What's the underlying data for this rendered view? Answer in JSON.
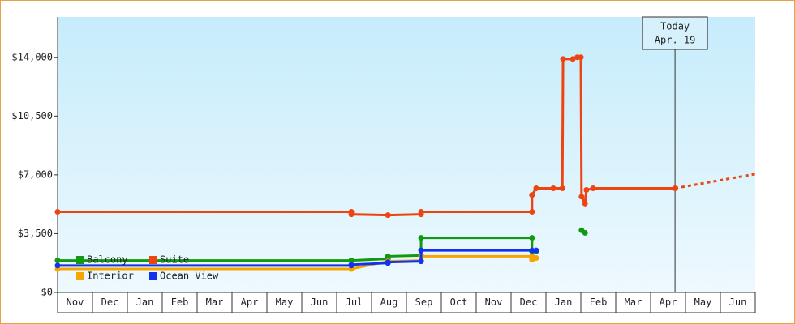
{
  "chart_data": {
    "type": "line",
    "xlim": [
      0,
      20
    ],
    "xticks": [
      {
        "value": 0.5,
        "label": "Nov"
      },
      {
        "value": 1.5,
        "label": "Dec"
      },
      {
        "value": 2.5,
        "label": "Jan"
      },
      {
        "value": 3.5,
        "label": "Feb"
      },
      {
        "value": 4.5,
        "label": "Mar"
      },
      {
        "value": 5.5,
        "label": "Apr"
      },
      {
        "value": 6.5,
        "label": "May"
      },
      {
        "value": 7.5,
        "label": "Jun"
      },
      {
        "value": 8.5,
        "label": "Jul"
      },
      {
        "value": 9.5,
        "label": "Aug"
      },
      {
        "value": 10.5,
        "label": "Sep"
      },
      {
        "value": 11.5,
        "label": "Oct"
      },
      {
        "value": 12.5,
        "label": "Nov"
      },
      {
        "value": 13.5,
        "label": "Dec"
      },
      {
        "value": 14.5,
        "label": "Jan"
      },
      {
        "value": 15.5,
        "label": "Feb"
      },
      {
        "value": 16.5,
        "label": "Mar"
      },
      {
        "value": 17.5,
        "label": "Apr"
      },
      {
        "value": 18.5,
        "label": "May"
      },
      {
        "value": 19.5,
        "label": "Jun"
      }
    ],
    "ylim": [
      0,
      16400
    ],
    "yticks": [
      {
        "value": 0,
        "label": "$0"
      },
      {
        "value": 3500,
        "label": "$3,500"
      },
      {
        "value": 7000,
        "label": "$7,000"
      },
      {
        "value": 10500,
        "label": "$10,500"
      },
      {
        "value": 14000,
        "label": "$14,000"
      }
    ],
    "today": {
      "x": 17.7,
      "label": "Today",
      "date": "Apr. 19"
    },
    "series": [
      {
        "name": "Balcony",
        "color": "#119911",
        "x": [
          0,
          8.42,
          9.47,
          9.47,
          10.42,
          10.42,
          13.6,
          13.6,
          13.72,
          null,
          15.02,
          15.12
        ],
        "values": [
          1900,
          1900,
          2000,
          2150,
          2200,
          3250,
          3250,
          2450,
          2450,
          null,
          3700,
          3550
        ]
      },
      {
        "name": "Suite",
        "color": "#ee4411",
        "x": [
          0,
          8.42,
          8.42,
          9.47,
          10.42,
          10.42,
          13.6,
          13.6,
          13.72,
          14.21,
          14.47,
          14.49,
          14.77,
          14.9,
          15.0,
          15.02,
          15.12,
          15.16,
          15.35,
          17.7
        ],
        "values": [
          4800,
          4800,
          4650,
          4600,
          4650,
          4800,
          4800,
          5800,
          6200,
          6200,
          6200,
          13900,
          13900,
          14000,
          14000,
          5700,
          5300,
          6100,
          6200,
          6200
        ],
        "projection_x": [
          17.7,
          20
        ],
        "projection_values": [
          6200,
          7050
        ]
      },
      {
        "name": "Interior",
        "color": "#f5a500",
        "x": [
          0,
          8.42,
          9.47,
          10.42,
          10.42,
          13.6,
          13.6,
          13.72
        ],
        "values": [
          1400,
          1400,
          1850,
          1900,
          2150,
          2150,
          1950,
          2050
        ]
      },
      {
        "name": "Ocean View",
        "color": "#1133ee",
        "x": [
          0,
          8.42,
          8.42,
          9.47,
          9.47,
          10.42,
          10.42,
          13.6,
          13.72
        ],
        "values": [
          1600,
          1600,
          1650,
          1750,
          1800,
          1850,
          2500,
          2500,
          2500
        ]
      }
    ]
  }
}
